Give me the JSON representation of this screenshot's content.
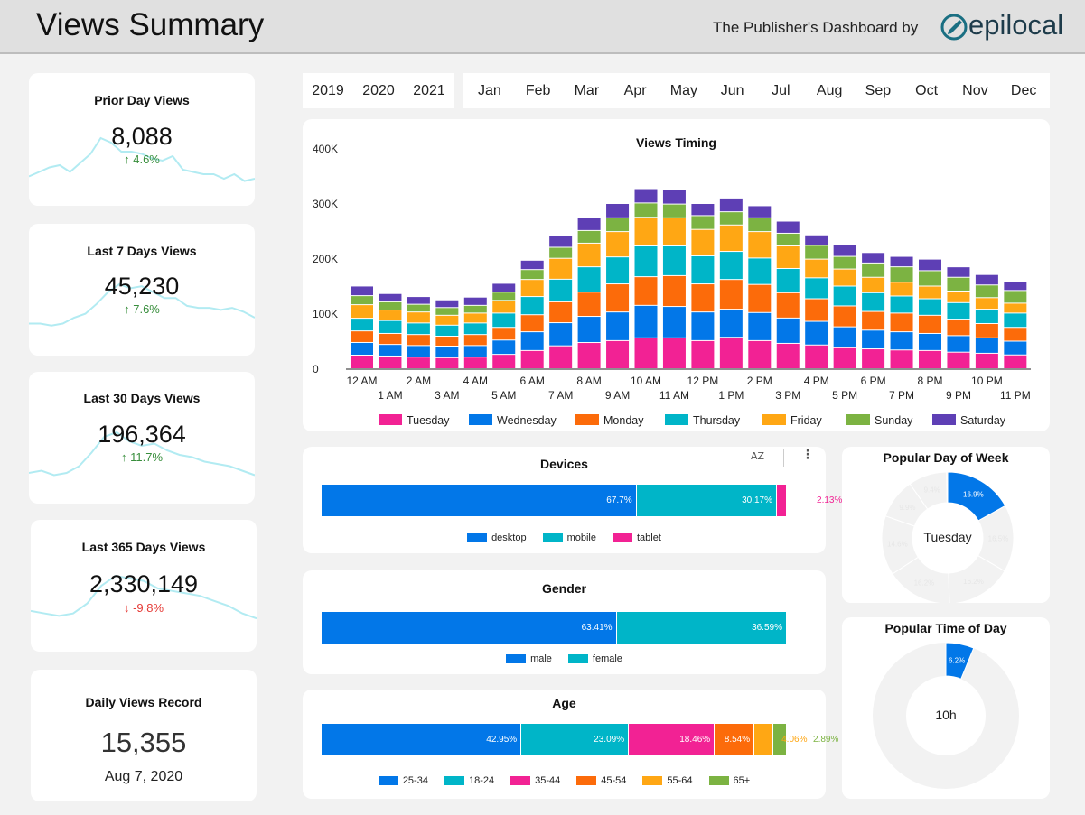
{
  "header": {
    "title": "Views Summary",
    "byline": "The Publisher's Dashboard by",
    "logo_text": "epilocal"
  },
  "kpis": [
    {
      "title": "Prior Day Views",
      "value": "8,088",
      "delta": "4.6%",
      "direction": "up",
      "trend": [
        3,
        5,
        7,
        8,
        5,
        9,
        13,
        20,
        18,
        14,
        14,
        13,
        11,
        10,
        12,
        6,
        5,
        4,
        4,
        2,
        4,
        1,
        2
      ]
    },
    {
      "title": "Last 7 Days Views",
      "value": "45,230",
      "delta": "7.6%",
      "direction": "up",
      "trend": [
        3,
        3,
        2,
        3,
        6,
        8,
        13,
        19,
        23,
        21,
        22,
        19,
        16,
        16,
        12,
        11,
        11,
        10,
        11,
        9,
        6
      ]
    },
    {
      "title": "Last 30 Days Views",
      "value": "196,364",
      "delta": "11.7%",
      "direction": "up",
      "trend": [
        2,
        3,
        1,
        2,
        5,
        11,
        18,
        20,
        16,
        14,
        15,
        12,
        10,
        9,
        7,
        6,
        5,
        3,
        1
      ]
    },
    {
      "title": "Last 365 Days Views",
      "value": "2,330,149",
      "delta": "-9.8%",
      "direction": "down",
      "trend": [
        4,
        3,
        2,
        3,
        7,
        14,
        18,
        17,
        16,
        13,
        12,
        11,
        10,
        8,
        6,
        3,
        1
      ]
    }
  ],
  "record": {
    "title": "Daily Views Record",
    "value": "15,355",
    "date": "Aug 7, 2020"
  },
  "years": [
    "2019",
    "2020",
    "2021"
  ],
  "months": [
    "Jan",
    "Feb",
    "Mar",
    "Apr",
    "May",
    "Jun",
    "Jul",
    "Aug",
    "Sep",
    "Oct",
    "Nov",
    "Dec"
  ],
  "colors": {
    "up": "#388e3c",
    "down": "#e53935",
    "spark": "#b2ebf2",
    "accent": "#0277bd"
  },
  "chart_data": [
    {
      "type": "bar",
      "stacked": true,
      "title": "Views Timing",
      "ylim": [
        0,
        400000
      ],
      "yticks": [
        "0",
        "100K",
        "200K",
        "300K",
        "400K"
      ],
      "ytick_values": [
        0,
        100000,
        200000,
        300000,
        400000
      ],
      "categories": [
        "12 AM",
        "1 AM",
        "2 AM",
        "3 AM",
        "4 AM",
        "5 AM",
        "6 AM",
        "7 AM",
        "8 AM",
        "9 AM",
        "10 AM",
        "11 AM",
        "12 PM",
        "1 PM",
        "2 PM",
        "3 PM",
        "4 PM",
        "5 PM",
        "6 PM",
        "7 PM",
        "8 PM",
        "9 PM",
        "10 PM",
        "11 PM"
      ],
      "legend_position": "bottom",
      "series": [
        {
          "name": "Tuesday",
          "color": "#f22294",
          "values": [
            24600,
            23000,
            21000,
            20000,
            21000,
            26000,
            33000,
            41500,
            47500,
            51000,
            56000,
            56000,
            51000,
            57000,
            51000,
            46000,
            43000,
            38000,
            36000,
            34000,
            33000,
            30000,
            28000,
            25000
          ]
        },
        {
          "name": "Wednesday",
          "color": "#0277e8",
          "values": [
            23000,
            21000,
            21000,
            21000,
            21000,
            26000,
            34000,
            42000,
            47500,
            52000,
            59000,
            57000,
            52000,
            51000,
            51000,
            46000,
            43000,
            38000,
            34000,
            33000,
            31000,
            30000,
            28000,
            25000
          ]
        },
        {
          "name": "Monday",
          "color": "#fc6b0a",
          "values": [
            21000,
            20000,
            20000,
            18000,
            20000,
            23000,
            31000,
            38000,
            44000,
            51000,
            52000,
            56000,
            51000,
            54000,
            51000,
            46000,
            41000,
            38000,
            34000,
            34000,
            33000,
            30000,
            26000,
            25000
          ]
        },
        {
          "name": "Thursday",
          "color": "#00b5c8",
          "values": [
            23000,
            23500,
            21000,
            20000,
            21000,
            26000,
            33000,
            41000,
            46000,
            49000,
            56000,
            54000,
            51000,
            51000,
            48000,
            44000,
            38000,
            36000,
            34000,
            31000,
            30000,
            30000,
            26000,
            26000
          ]
        },
        {
          "name": "Friday",
          "color": "#ffa714",
          "values": [
            24600,
            19000,
            20000,
            18000,
            18000,
            23000,
            31000,
            38000,
            43000,
            46000,
            52000,
            51000,
            48000,
            48000,
            48000,
            41000,
            34000,
            31000,
            28000,
            25000,
            23000,
            21000,
            21000,
            18000
          ]
        },
        {
          "name": "Sunday",
          "color": "#7cb342",
          "values": [
            16400,
            15000,
            14000,
            14000,
            14000,
            15000,
            18000,
            20000,
            23000,
            25000,
            26000,
            25000,
            25000,
            24000,
            25000,
            23000,
            25000,
            23000,
            26000,
            28000,
            28000,
            25000,
            23000,
            23000
          ]
        },
        {
          "name": "Saturday",
          "color": "#5e3fb5",
          "values": [
            17500,
            15000,
            14000,
            14000,
            15000,
            16000,
            17000,
            22000,
            24000,
            26000,
            26000,
            26000,
            22000,
            25000,
            22000,
            22000,
            19000,
            21000,
            19000,
            19000,
            21000,
            19000,
            19000,
            16000
          ]
        }
      ]
    },
    {
      "type": "bar",
      "stacked": true,
      "orientation": "horizontal",
      "title": "Devices",
      "legend_position": "bottom",
      "series": [
        {
          "name": "desktop",
          "value": 67.7,
          "label": "67.7%",
          "color": "#0277e8"
        },
        {
          "name": "mobile",
          "value": 30.17,
          "label": "30.17%",
          "color": "#00b5c8"
        },
        {
          "name": "tablet",
          "value": 2.13,
          "label": "2.13%",
          "color": "#f22294"
        }
      ]
    },
    {
      "type": "bar",
      "stacked": true,
      "orientation": "horizontal",
      "title": "Gender",
      "legend_position": "bottom",
      "series": [
        {
          "name": "male",
          "value": 63.41,
          "label": "63.41%",
          "color": "#0277e8"
        },
        {
          "name": "female",
          "value": 36.59,
          "label": "36.59%",
          "color": "#00b5c8"
        }
      ]
    },
    {
      "type": "bar",
      "stacked": true,
      "orientation": "horizontal",
      "title": "Age",
      "legend_position": "bottom",
      "series": [
        {
          "name": "25-34",
          "value": 42.95,
          "label": "42.95%",
          "color": "#0277e8"
        },
        {
          "name": "18-24",
          "value": 23.09,
          "label": "23.09%",
          "color": "#00b5c8"
        },
        {
          "name": "35-44",
          "value": 18.46,
          "label": "18.46%",
          "color": "#f22294"
        },
        {
          "name": "45-54",
          "value": 8.54,
          "label": "8.54%",
          "color": "#fc6b0a"
        },
        {
          "name": "55-64",
          "value": 4.06,
          "label": "4.06%",
          "color": "#ffa714"
        },
        {
          "name": "65+",
          "value": 2.89,
          "label": "2.89%",
          "color": "#7cb342"
        }
      ]
    },
    {
      "type": "pie",
      "donut": true,
      "title": "Popular Day of Week",
      "center_label": "Tuesday",
      "values": [
        16.9,
        16.5,
        16.2,
        16.2,
        14.6,
        9.9,
        9.4
      ],
      "labels": [
        "16.9%",
        "16.5%",
        "16.2%",
        "16.2%",
        "14.6%",
        "9.9%",
        "9.4%"
      ],
      "highlight_index": 0,
      "highlight_color": "#0277e8"
    },
    {
      "type": "pie",
      "donut": true,
      "title": "Popular Time of Day",
      "center_label": "10h",
      "values": [
        6.2
      ],
      "labels": [
        "6.2%"
      ],
      "highlight_index": 0,
      "highlight_color": "#0277e8"
    }
  ],
  "devices_toolbar": {
    "sort_icon": "sort-az-icon",
    "more_icon": "more-vert-icon",
    "sort_label": "AZ"
  }
}
